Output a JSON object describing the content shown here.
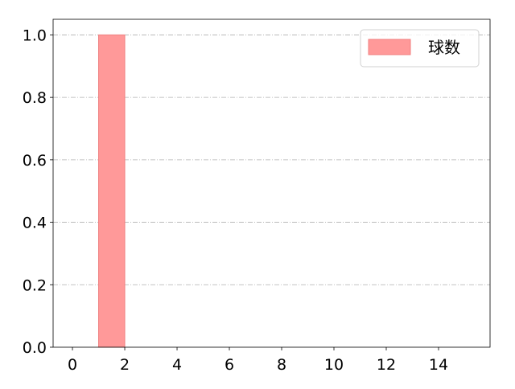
{
  "chart_data": {
    "type": "bar",
    "bars": [
      {
        "x_start": 1,
        "x_end": 2,
        "value": 1.0
      }
    ],
    "series": [
      {
        "name": "球数"
      }
    ],
    "xlim": [
      -0.74,
      15.97
    ],
    "ylim": [
      0,
      1.05
    ],
    "xticks": [
      0,
      2,
      4,
      6,
      8,
      10,
      12,
      14
    ],
    "yticks": [
      "0.0",
      "0.2",
      "0.4",
      "0.6",
      "0.8",
      "1.0"
    ],
    "grid": "y dash-dot",
    "legend_position": "top-right",
    "colors": {
      "bar_fill": "#ff9999",
      "bar_edge": "#f08080",
      "grid": "#b0b0b0"
    }
  }
}
